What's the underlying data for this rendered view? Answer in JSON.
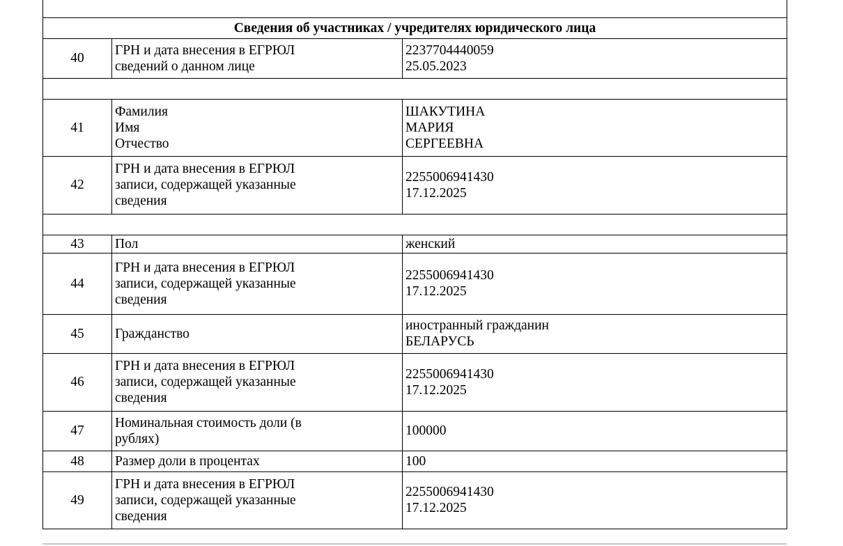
{
  "section_title": "Сведения об участниках / учредителях юридического лица",
  "rows": [
    {
      "num": "40",
      "label": [
        "ГРН и дата внесения в ЕГРЮЛ",
        "сведений о данном лице"
      ],
      "value": [
        "2237704440059",
        "25.05.2023"
      ]
    },
    {
      "num": "41",
      "label": [
        "Фамилия",
        "Имя",
        "Отчество"
      ],
      "value": [
        "ШАКУТИНА",
        "МАРИЯ",
        "СЕРГЕЕВНА"
      ]
    },
    {
      "num": "42",
      "label": [
        "ГРН и дата внесения в ЕГРЮЛ",
        "записи, содержащей указанные",
        "сведения"
      ],
      "value": [
        "2255006941430",
        "17.12.2025"
      ]
    },
    {
      "num": "43",
      "label": [
        "Пол"
      ],
      "value": [
        "женский"
      ]
    },
    {
      "num": "44",
      "label": [
        "ГРН и дата внесения в ЕГРЮЛ",
        "записи, содержащей указанные",
        "сведения"
      ],
      "value": [
        "2255006941430",
        "17.12.2025"
      ]
    },
    {
      "num": "45",
      "label": [
        "Гражданство"
      ],
      "value": [
        "иностранный гражданин",
        "БЕЛАРУСЬ"
      ]
    },
    {
      "num": "46",
      "label": [
        "ГРН и дата внесения в ЕГРЮЛ",
        "записи, содержащей указанные",
        "сведения"
      ],
      "value": [
        "2255006941430",
        "17.12.2025"
      ]
    },
    {
      "num": "47",
      "label": [
        "Номинальная стоимость доли (в",
        "рублях)"
      ],
      "value": [
        "100000"
      ]
    },
    {
      "num": "48",
      "label": [
        "Размер доли в процентах"
      ],
      "value": [
        "100"
      ]
    },
    {
      "num": "49",
      "label": [
        "ГРН и дата внесения в ЕГРЮЛ",
        "записи, содержащей указанные",
        "сведения"
      ],
      "value": [
        "2255006941430",
        "17.12.2025"
      ]
    }
  ]
}
